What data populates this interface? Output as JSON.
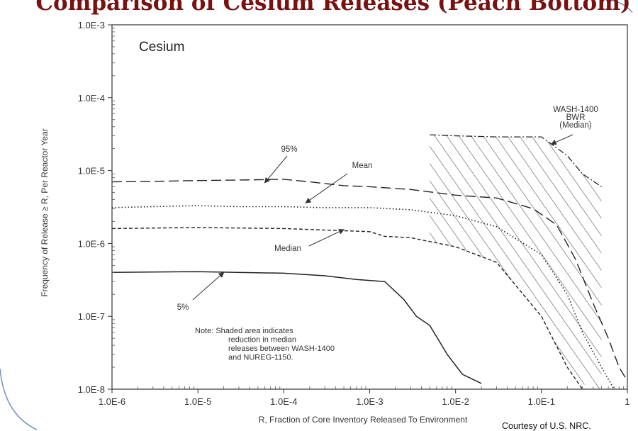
{
  "title": "Comparison of Cesium Releases (Peach Bottom)",
  "credit": "Courtesy of U.S. NRC.",
  "chart_data": {
    "type": "line",
    "title": "Cesium",
    "xlabel": "R, Fraction of Core Inventory Released To Environment",
    "ylabel": "Frequency of Release ≥ R, Per Reactor Year",
    "xscale": "log",
    "yscale": "log",
    "xlim": [
      1e-06,
      1
    ],
    "ylim": [
      1e-08,
      0.001
    ],
    "x_ticks": [
      1e-06,
      1e-05,
      0.0001,
      0.001,
      0.01,
      0.1,
      1
    ],
    "x_tick_labels": [
      "1.0E-6",
      "1.0E-5",
      "1.0E-4",
      "1.0E-3",
      "1.0E-2",
      "1.0E-1",
      "1"
    ],
    "y_ticks": [
      1e-08,
      1e-07,
      1e-06,
      1e-05,
      0.0001,
      0.001
    ],
    "y_tick_labels": [
      "1.0E-8",
      "1.0E-7",
      "1.0E-6",
      "1.0E-5",
      "1.0E-4",
      "1.0E-3"
    ],
    "grid": false,
    "series": [
      {
        "name": "95%",
        "style": "dashed",
        "x": [
          1e-06,
          3e-06,
          1e-05,
          3e-05,
          0.0001,
          0.0002,
          0.0005,
          0.001,
          0.003,
          0.01,
          0.03,
          0.08,
          0.15,
          0.25,
          0.4,
          0.6,
          0.8,
          1
        ],
        "y": [
          7e-06,
          7.1e-06,
          7.3e-06,
          7.4e-06,
          7.6e-06,
          7e-06,
          6.2e-06,
          6e-06,
          5.5e-06,
          4.6e-06,
          4.2e-06,
          3e-06,
          1.8e-06,
          6e-07,
          1.5e-07,
          5e-08,
          2e-08,
          1.3e-08
        ]
      },
      {
        "name": "Mean",
        "style": "dotted",
        "x": [
          1e-06,
          3e-06,
          1e-05,
          3e-05,
          0.0001,
          0.0003,
          0.001,
          0.003,
          0.01,
          0.03,
          0.1,
          0.2,
          0.3,
          0.5,
          0.7
        ],
        "y": [
          3.1e-06,
          3.2e-06,
          3.3e-06,
          3.2e-06,
          3.2e-06,
          3.1e-06,
          3.1e-06,
          2.9e-06,
          2.4e-06,
          1.7e-06,
          7e-07,
          2e-07,
          6e-08,
          2e-08,
          1e-08
        ]
      },
      {
        "name": "Median",
        "style": "short-dash",
        "x": [
          1e-06,
          1e-05,
          0.0001,
          0.001,
          0.0015,
          0.003,
          0.01,
          0.03,
          0.1,
          0.2,
          0.3,
          0.4
        ],
        "y": [
          1.6e-06,
          1.65e-06,
          1.6e-06,
          1.45e-06,
          1.25e-06,
          1.2e-06,
          9e-07,
          5.5e-07,
          1e-07,
          2e-08,
          1e-08,
          8e-09
        ]
      },
      {
        "name": "5%",
        "style": "solid",
        "x": [
          1e-06,
          1e-05,
          0.0001,
          0.0003,
          0.0007,
          0.0015,
          0.0025,
          0.0035,
          0.005,
          0.008,
          0.012,
          0.02
        ],
        "y": [
          4e-07,
          4.1e-07,
          3.9e-07,
          3.6e-07,
          3.2e-07,
          3e-07,
          1.7e-07,
          1e-07,
          7.5e-08,
          3e-08,
          1.6e-08,
          1.2e-08
        ]
      },
      {
        "name": "WASH-1400 BWR (Median)",
        "style": "dash-dot",
        "x": [
          0.005,
          0.01,
          0.03,
          0.1,
          0.2,
          0.3,
          0.5
        ],
        "y": [
          3.1e-05,
          3e-05,
          2.9e-05,
          2.9e-05,
          1.6e-05,
          9e-06,
          6e-06
        ]
      }
    ],
    "shaded_region": {
      "x": [
        0.005,
        0.01,
        0.03,
        0.1,
        0.2,
        0.3,
        0.5,
        0.5,
        0.4,
        0.3,
        0.2,
        0.1,
        0.03,
        0.01,
        0.005
      ],
      "y": [
        3.1e-05,
        3e-05,
        2.9e-05,
        2.9e-05,
        1.6e-05,
        9e-06,
        6e-06,
        1e-08,
        1e-08,
        1.2e-08,
        2e-08,
        1e-07,
        5.5e-07,
        9e-07,
        1.1e-06
      ]
    },
    "annotations": [
      {
        "id": "wash",
        "lines": [
          "WASH-1400",
          "BWR",
          "(Median)"
        ],
        "arrow_to": [
          0.13,
          2.3e-05
        ]
      },
      {
        "id": "p95",
        "lines": [
          "95%"
        ],
        "arrow_to": [
          6e-05,
          6.8e-06
        ]
      },
      {
        "id": "mean",
        "lines": [
          "Mean"
        ],
        "arrow_to": [
          0.00018,
          3.6e-06
        ]
      },
      {
        "id": "median",
        "lines": [
          "Median"
        ],
        "arrow_to": [
          0.0005,
          1.55e-06
        ]
      },
      {
        "id": "p5",
        "lines": [
          "5%"
        ],
        "arrow_to": [
          2e-05,
          4e-07
        ]
      },
      {
        "id": "note",
        "lines": [
          "Note:  Shaded area indicates",
          "reduction in median",
          "releases between WASH-1400",
          "and NUREG-1150."
        ]
      }
    ]
  }
}
